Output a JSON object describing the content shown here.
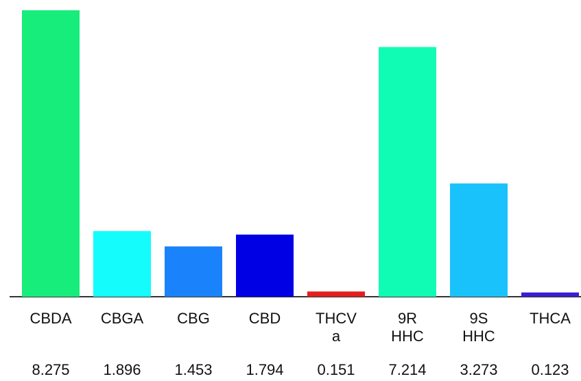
{
  "chart_data": {
    "type": "bar",
    "categories": [
      [
        "CBDA"
      ],
      [
        "CBGA"
      ],
      [
        "CBG"
      ],
      [
        "CBD"
      ],
      [
        "THCV",
        "a"
      ],
      [
        "9R",
        "HHC"
      ],
      [
        "9S",
        "HHC"
      ],
      [
        "THCA"
      ]
    ],
    "values": [
      8.275,
      1.896,
      1.453,
      1.794,
      0.151,
      7.214,
      3.273,
      0.123
    ],
    "colors": [
      "#16ed7a",
      "#14fcfc",
      "#1a82fa",
      "#0000e4",
      "#e31e1e",
      "#10fcb4",
      "#1ac2fc",
      "#3a1fd0"
    ]
  }
}
